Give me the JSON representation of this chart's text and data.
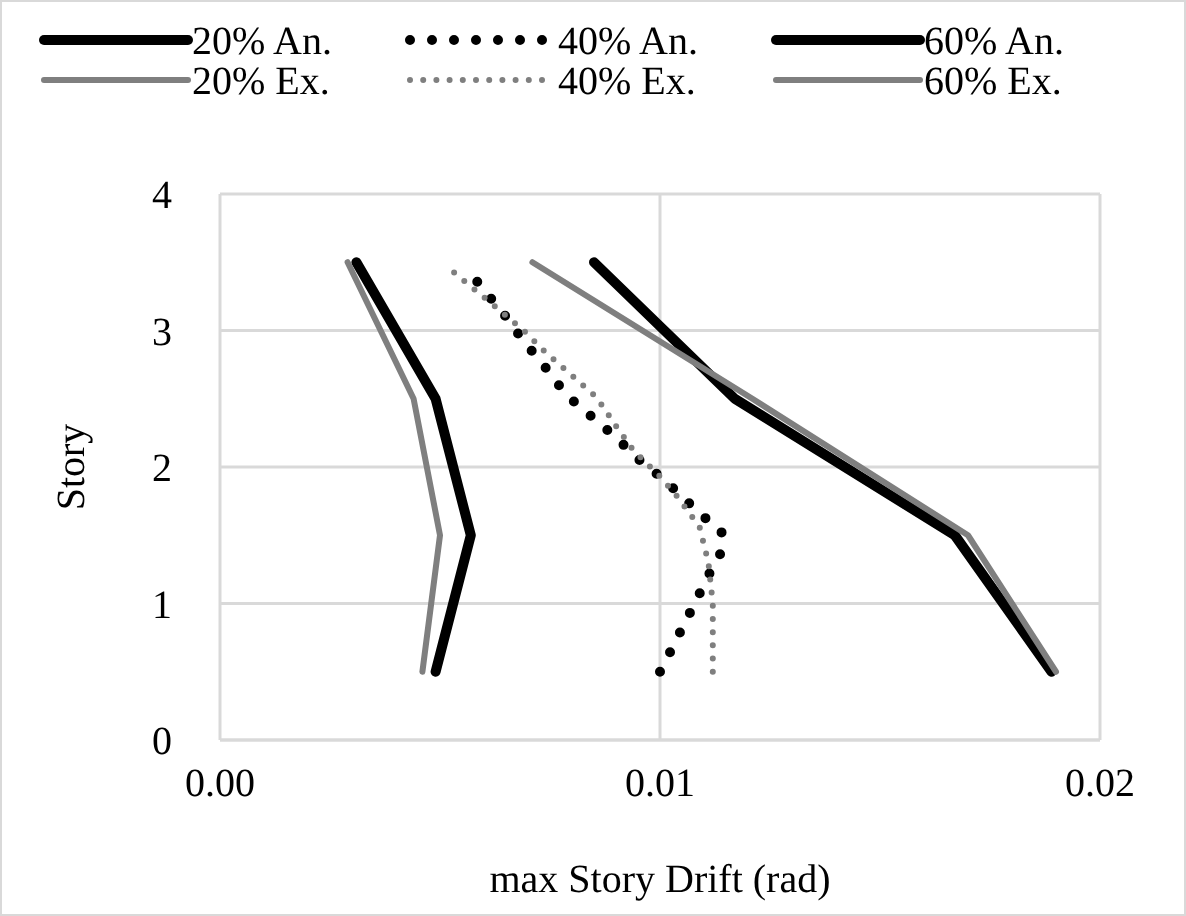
{
  "chart_data": {
    "type": "line",
    "xlabel": "max Story Drift (rad)",
    "ylabel": "Story",
    "xlim": [
      0,
      0.02
    ],
    "xticks": [
      {
        "value": 0,
        "label": "0.00"
      },
      {
        "value": 0.01,
        "label": "0.01"
      },
      {
        "value": 0.02,
        "label": "0.02"
      }
    ],
    "ylim": [
      0,
      4
    ],
    "yticks": [
      0,
      1,
      2,
      3,
      4
    ],
    "grid": true,
    "legend": "top",
    "series": [
      {
        "name": "20% An.",
        "color": "#000000",
        "line_style": "solid",
        "x": [
          0.0049,
          0.0057,
          0.0049,
          0.0031
        ],
        "values": [
          0.5,
          1.5,
          2.5,
          3.5
        ]
      },
      {
        "name": "40% An.",
        "color": "#000000",
        "line_style": "dotted",
        "x": [
          0.01,
          0.01027,
          0.01055,
          0.01082,
          0.01109,
          0.01138,
          0.0114,
          0.0109,
          0.01045,
          0.01,
          0.0095,
          0.00905,
          0.0086,
          0.0081,
          0.0077,
          0.0073,
          0.0069,
          0.00655,
          0.00617,
          0.00579
        ],
        "values": [
          0.5,
          0.67,
          0.85,
          1.02,
          1.2,
          1.37,
          1.53,
          1.66,
          1.8,
          1.93,
          2.06,
          2.2,
          2.33,
          2.46,
          2.6,
          2.77,
          2.92,
          3.08,
          3.23,
          3.38
        ]
      },
      {
        "name": "60% An.",
        "color": "#000000",
        "line_style": "solid",
        "x": [
          0.0189,
          0.0167,
          0.0117,
          0.0085
        ],
        "values": [
          0.5,
          1.5,
          2.5,
          3.5
        ]
      },
      {
        "name": "20% Ex.",
        "color": "#7f7f7f",
        "line_style": "solid",
        "x": [
          0.0046,
          0.005,
          0.0044,
          0.0029
        ],
        "values": [
          0.5,
          1.5,
          2.5,
          3.5
        ]
      },
      {
        "name": "40% Ex.",
        "color": "#7f7f7f",
        "line_style": "dotted",
        "x": [
          0.0112,
          0.0112,
          0.0111,
          0.0109,
          0.0104,
          0.01,
          0.0094,
          0.009,
          0.00856,
          0.008,
          0.0074,
          0.0069,
          0.0062,
          0.00515
        ],
        "values": [
          0.5,
          1.0,
          1.3,
          1.56,
          1.78,
          1.93,
          2.12,
          2.3,
          2.51,
          2.67,
          2.84,
          3.0,
          3.19,
          3.47
        ]
      },
      {
        "name": "60% Ex.",
        "color": "#7f7f7f",
        "line_style": "solid",
        "x": [
          0.019,
          0.017,
          0.0121,
          0.0071
        ],
        "values": [
          0.5,
          1.5,
          2.5,
          3.5
        ]
      }
    ]
  }
}
